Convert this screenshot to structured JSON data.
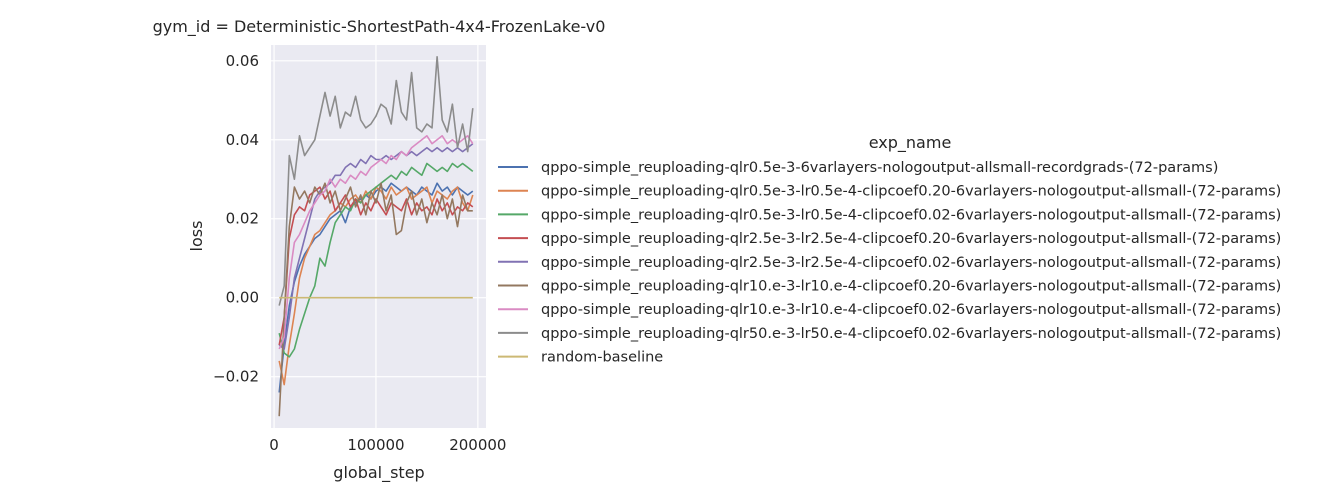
{
  "chart_data": {
    "type": "line",
    "title": "gym_id = Deterministic-ShortestPath-4x4-FrozenLake-v0",
    "xlabel": "global_step",
    "ylabel": "loss",
    "xlim": [
      -3000,
      208000
    ],
    "ylim": [
      -0.033,
      0.064
    ],
    "xticks": [
      0,
      100000,
      200000
    ],
    "xtick_labels": [
      "0",
      "100000",
      "200000"
    ],
    "yticks": [
      -0.02,
      0.0,
      0.02,
      0.04,
      0.06
    ],
    "ytick_labels": [
      "−0.02",
      "0.00",
      "0.02",
      "0.04",
      "0.06"
    ],
    "grid": true,
    "legend_title": "exp_name",
    "legend_placement": "right",
    "x": [
      5000,
      10000,
      15000,
      20000,
      25000,
      30000,
      35000,
      40000,
      45000,
      50000,
      55000,
      60000,
      65000,
      70000,
      75000,
      80000,
      85000,
      90000,
      95000,
      100000,
      105000,
      110000,
      115000,
      120000,
      125000,
      130000,
      135000,
      140000,
      145000,
      150000,
      155000,
      160000,
      165000,
      170000,
      175000,
      180000,
      185000,
      190000,
      195000
    ],
    "series": [
      {
        "name": "qppo-simple_reuploading-qlr0.5e-3-6varlayers-nologoutput-allsmall-recordgrads-(72-params)",
        "color": "#4c72b0",
        "values": [
          -0.024,
          -0.012,
          -0.002,
          0.004,
          0.008,
          0.011,
          0.013,
          0.015,
          0.016,
          0.018,
          0.02,
          0.021,
          0.022,
          0.019,
          0.023,
          0.024,
          0.025,
          0.026,
          0.025,
          0.027,
          0.028,
          0.027,
          0.029,
          0.028,
          0.027,
          0.028,
          0.027,
          0.026,
          0.028,
          0.027,
          0.026,
          0.029,
          0.027,
          0.028,
          0.026,
          0.028,
          0.027,
          0.026,
          0.027
        ]
      },
      {
        "name": "qppo-simple_reuploading-qlr0.5e-3-lr0.5e-4-clipcoef0.20-6varlayers-nologoutput-allsmall-(72-params)",
        "color": "#dd8452",
        "values": [
          -0.016,
          -0.022,
          -0.012,
          -0.004,
          0.005,
          0.01,
          0.013,
          0.016,
          0.017,
          0.019,
          0.021,
          0.022,
          0.024,
          0.023,
          0.025,
          0.026,
          0.024,
          0.027,
          0.025,
          0.028,
          0.027,
          0.025,
          0.028,
          0.026,
          0.027,
          0.028,
          0.025,
          0.026,
          0.027,
          0.028,
          0.024,
          0.027,
          0.026,
          0.025,
          0.027,
          0.028,
          0.024,
          0.022,
          0.026
        ]
      },
      {
        "name": "qppo-simple_reuploading-qlr0.5e-3-lr0.5e-4-clipcoef0.02-6varlayers-nologoutput-allsmall-(72-params)",
        "color": "#55a868",
        "values": [
          -0.009,
          -0.014,
          -0.015,
          -0.013,
          -0.008,
          -0.004,
          0.0,
          0.003,
          0.01,
          0.008,
          0.014,
          0.019,
          0.021,
          0.023,
          0.022,
          0.025,
          0.024,
          0.026,
          0.027,
          0.028,
          0.029,
          0.03,
          0.031,
          0.03,
          0.032,
          0.031,
          0.033,
          0.032,
          0.031,
          0.034,
          0.033,
          0.032,
          0.033,
          0.032,
          0.034,
          0.033,
          0.034,
          0.033,
          0.032
        ]
      },
      {
        "name": "qppo-simple_reuploading-qlr2.5e-3-lr2.5e-4-clipcoef0.20-6varlayers-nologoutput-allsmall-(72-params)",
        "color": "#c44e52",
        "values": [
          -0.012,
          -0.005,
          0.015,
          0.021,
          0.023,
          0.022,
          0.026,
          0.027,
          0.028,
          0.025,
          0.027,
          0.022,
          0.024,
          0.026,
          0.023,
          0.025,
          0.021,
          0.024,
          0.022,
          0.025,
          0.023,
          0.021,
          0.024,
          0.023,
          0.022,
          0.025,
          0.021,
          0.024,
          0.022,
          0.023,
          0.021,
          0.025,
          0.022,
          0.024,
          0.021,
          0.023,
          0.022,
          0.024,
          0.023
        ]
      },
      {
        "name": "qppo-simple_reuploading-qlr2.5e-3-lr2.5e-4-clipcoef0.02-6varlayers-nologoutput-allsmall-(72-params)",
        "color": "#8172b3",
        "values": [
          -0.012,
          -0.013,
          -0.005,
          0.005,
          0.01,
          0.015,
          0.02,
          0.025,
          0.027,
          0.028,
          0.029,
          0.031,
          0.031,
          0.033,
          0.034,
          0.033,
          0.035,
          0.034,
          0.036,
          0.035,
          0.035,
          0.036,
          0.035,
          0.036,
          0.037,
          0.036,
          0.037,
          0.036,
          0.037,
          0.038,
          0.037,
          0.038,
          0.037,
          0.038,
          0.037,
          0.038,
          0.037,
          0.038,
          0.039
        ]
      },
      {
        "name": "qppo-simple_reuploading-qlr10.e-3-lr10.e-4-clipcoef0.20-6varlayers-nologoutput-allsmall-(72-params)",
        "color": "#937860",
        "values": [
          -0.03,
          -0.005,
          0.018,
          0.028,
          0.025,
          0.027,
          0.024,
          0.028,
          0.026,
          0.029,
          0.024,
          0.027,
          0.022,
          0.025,
          0.028,
          0.023,
          0.026,
          0.021,
          0.027,
          0.024,
          0.029,
          0.022,
          0.026,
          0.016,
          0.017,
          0.024,
          0.027,
          0.021,
          0.025,
          0.019,
          0.024,
          0.021,
          0.026,
          0.02,
          0.025,
          0.018,
          0.026,
          0.022,
          0.022
        ]
      },
      {
        "name": "qppo-simple_reuploading-qlr10.e-3-lr10.e-4-clipcoef0.02-6varlayers-nologoutput-allsmall-(72-params)",
        "color": "#da8bc3",
        "values": [
          -0.013,
          -0.01,
          0.005,
          0.014,
          0.016,
          0.019,
          0.022,
          0.024,
          0.026,
          0.027,
          0.03,
          0.028,
          0.03,
          0.029,
          0.031,
          0.03,
          0.032,
          0.031,
          0.033,
          0.034,
          0.035,
          0.034,
          0.036,
          0.035,
          0.037,
          0.036,
          0.038,
          0.039,
          0.04,
          0.041,
          0.039,
          0.04,
          0.041,
          0.039,
          0.04,
          0.039,
          0.04,
          0.041,
          0.039
        ]
      },
      {
        "name": "qppo-simple_reuploading-qlr50.e-3-lr50.e-4-clipcoef0.02-6varlayers-nologoutput-allsmall-(72-params)",
        "color": "#8c8c8c",
        "values": [
          -0.002,
          0.003,
          0.036,
          0.03,
          0.041,
          0.036,
          0.038,
          0.04,
          0.046,
          0.052,
          0.046,
          0.051,
          0.043,
          0.047,
          0.046,
          0.051,
          0.045,
          0.043,
          0.044,
          0.046,
          0.049,
          0.048,
          0.044,
          0.055,
          0.047,
          0.045,
          0.057,
          0.043,
          0.042,
          0.044,
          0.043,
          0.061,
          0.045,
          0.042,
          0.049,
          0.038,
          0.044,
          0.037,
          0.048
        ]
      },
      {
        "name": "random-baseline",
        "color": "#ccb974",
        "values": [
          0.0,
          0.0,
          0.0,
          0.0,
          0.0,
          0.0,
          0.0,
          0.0,
          0.0,
          0.0,
          0.0,
          0.0,
          0.0,
          0.0,
          0.0,
          0.0,
          0.0,
          0.0,
          0.0,
          0.0,
          0.0,
          0.0,
          0.0,
          0.0,
          0.0,
          0.0,
          0.0,
          0.0,
          0.0,
          0.0,
          0.0,
          0.0,
          0.0,
          0.0,
          0.0,
          0.0,
          0.0,
          0.0,
          0.0
        ]
      }
    ]
  }
}
